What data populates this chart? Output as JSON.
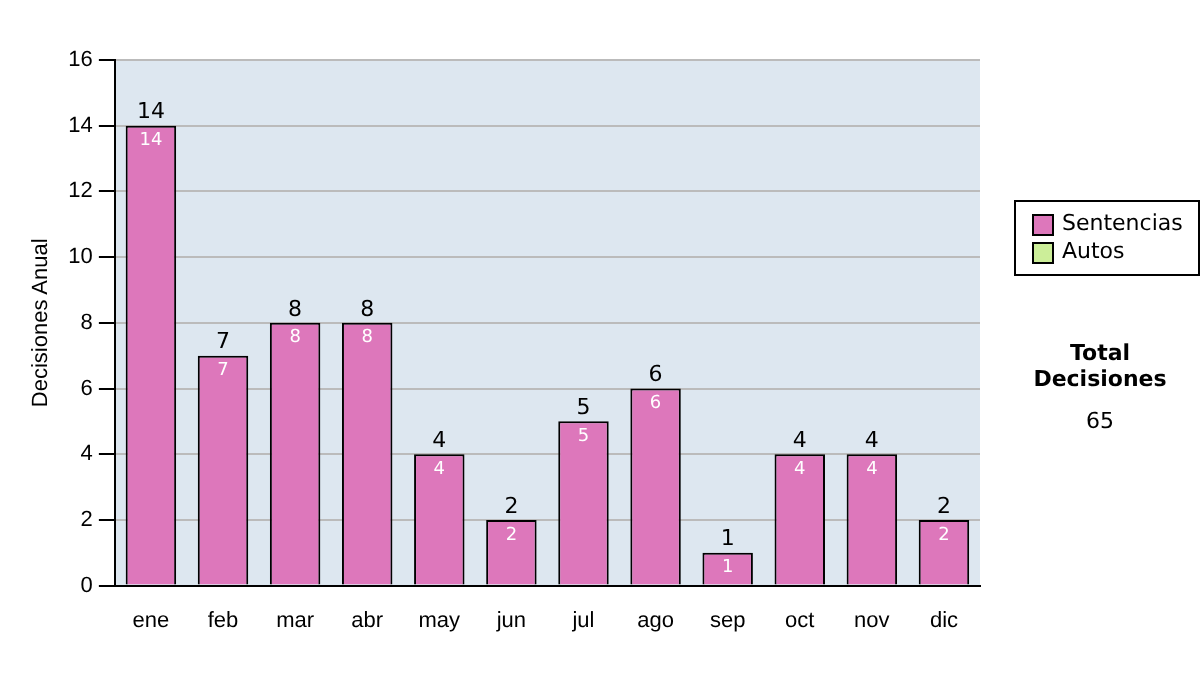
{
  "chart_data": {
    "type": "bar",
    "stacked": true,
    "ylabel": "Decisiones Anual",
    "categories": [
      "ene",
      "feb",
      "mar",
      "abr",
      "may",
      "jun",
      "jul",
      "ago",
      "sep",
      "oct",
      "nov",
      "dic"
    ],
    "series": [
      {
        "name": "Sentencias",
        "color": "#dd77bb",
        "values": [
          14,
          7,
          8,
          8,
          4,
          2,
          5,
          6,
          1,
          4,
          4,
          2
        ],
        "value_labels": [
          "14",
          "7",
          "8",
          "8",
          "4",
          "2",
          "5",
          "6",
          "1",
          "4",
          "4",
          "2"
        ]
      },
      {
        "name": "Autos",
        "color": "#ccee99",
        "values": [
          0,
          0,
          0,
          0,
          0,
          0,
          0,
          0,
          0,
          0,
          0,
          0
        ]
      }
    ],
    "totals": [
      "14",
      "7",
      "8",
      "8",
      "4",
      "2",
      "5",
      "6",
      "1",
      "4",
      "4",
      "2"
    ],
    "ylim": [
      0,
      16
    ],
    "yticks": [
      0,
      2,
      4,
      6,
      8,
      10,
      12,
      14,
      16
    ],
    "grid": "y",
    "legend": "right",
    "annotations": [
      "Total Decisiones",
      "65"
    ]
  }
}
